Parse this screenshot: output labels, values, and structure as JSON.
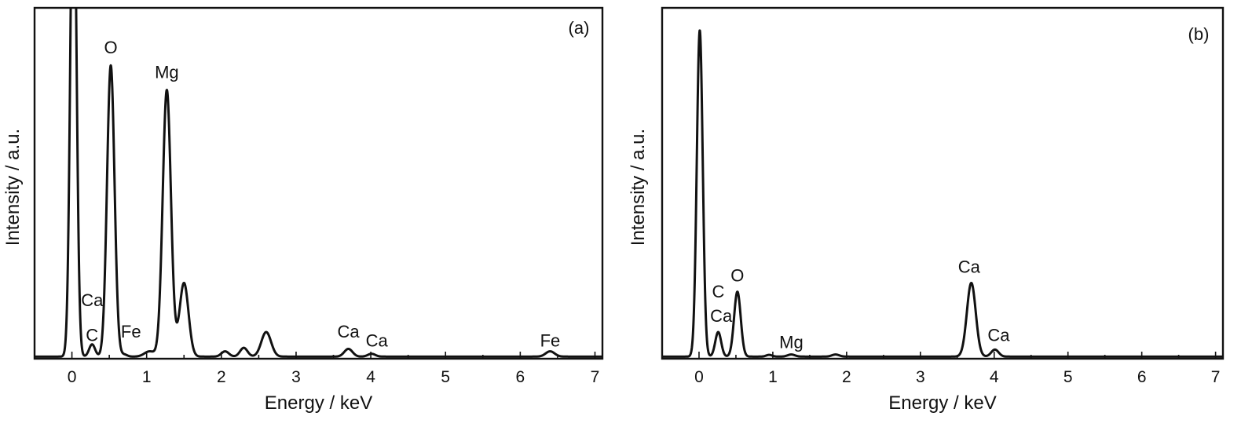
{
  "chart_data": [
    {
      "type": "line",
      "panel": "(a)",
      "xlabel": "Energy / keV",
      "ylabel": "Intensity / a.u.",
      "xlim": [
        -0.5,
        7.1
      ],
      "ylim": [
        0,
        100
      ],
      "y_ticks_labeled": false,
      "legend": "none",
      "grid": false,
      "xticks": [
        "0",
        "1",
        "2",
        "3",
        "4",
        "5",
        "6",
        "7"
      ],
      "baseline": 0.6,
      "series": [
        {
          "peaks": [
            {
              "x": 0.02,
              "height": 150,
              "width": 0.04
            },
            {
              "x": 0.27,
              "height": 3.5,
              "width": 0.04
            },
            {
              "x": 0.52,
              "height": 83,
              "width": 0.05
            },
            {
              "x": 0.7,
              "height": 0.6,
              "width": 0.04
            },
            {
              "x": 1.04,
              "height": 1.5,
              "width": 0.07
            },
            {
              "x": 1.27,
              "height": 76,
              "width": 0.055
            },
            {
              "x": 1.5,
              "height": 21,
              "width": 0.06
            },
            {
              "x": 2.05,
              "height": 1.5,
              "width": 0.05
            },
            {
              "x": 2.3,
              "height": 2.5,
              "width": 0.05
            },
            {
              "x": 2.6,
              "height": 7,
              "width": 0.065
            },
            {
              "x": 3.7,
              "height": 2.2,
              "width": 0.055
            },
            {
              "x": 4.01,
              "height": 0.8,
              "width": 0.05
            },
            {
              "x": 6.4,
              "height": 1.5,
              "width": 0.06
            }
          ]
        }
      ],
      "annotations": [
        {
          "text": "O",
          "x": 0.52,
          "y": 87
        },
        {
          "text": "Mg",
          "x": 1.27,
          "y": 80
        },
        {
          "text": "Ca",
          "x": 0.27,
          "y": 15
        },
        {
          "text": "C",
          "x": 0.27,
          "y": 5
        },
        {
          "text": "Fe",
          "x": 0.79,
          "y": 6
        },
        {
          "text": "Ca",
          "x": 3.7,
          "y": 6
        },
        {
          "text": "Ca",
          "x": 4.08,
          "y": 3.5
        },
        {
          "text": "Fe",
          "x": 6.4,
          "y": 3.5
        }
      ]
    },
    {
      "type": "line",
      "panel": "(b)",
      "xlabel": "Energy / keV",
      "ylabel": "Intensity / a.u.",
      "xlim": [
        -0.5,
        7.1
      ],
      "ylim": [
        0,
        100
      ],
      "y_ticks_labeled": false,
      "legend": "none",
      "grid": false,
      "xticks": [
        "0",
        "1",
        "2",
        "3",
        "4",
        "5",
        "6",
        "7"
      ],
      "baseline": 0.6,
      "series": [
        {
          "peaks": [
            {
              "x": 0.01,
              "height": 93,
              "width": 0.04
            },
            {
              "x": 0.26,
              "height": 7,
              "width": 0.04
            },
            {
              "x": 0.52,
              "height": 18.5,
              "width": 0.045
            },
            {
              "x": 0.95,
              "height": 0.5,
              "width": 0.04
            },
            {
              "x": 1.25,
              "height": 0.6,
              "width": 0.05
            },
            {
              "x": 1.85,
              "height": 0.6,
              "width": 0.05
            },
            {
              "x": 3.69,
              "height": 21,
              "width": 0.06
            },
            {
              "x": 4.01,
              "height": 2,
              "width": 0.05
            }
          ]
        }
      ],
      "annotations": [
        {
          "text": "O",
          "x": 0.52,
          "y": 22
        },
        {
          "text": "C",
          "x": 0.26,
          "y": 17.5
        },
        {
          "text": "Ca",
          "x": 0.3,
          "y": 10.5
        },
        {
          "text": "Mg",
          "x": 1.25,
          "y": 3
        },
        {
          "text": "Ca",
          "x": 3.66,
          "y": 24.5
        },
        {
          "text": "Ca",
          "x": 4.06,
          "y": 5
        }
      ]
    }
  ]
}
